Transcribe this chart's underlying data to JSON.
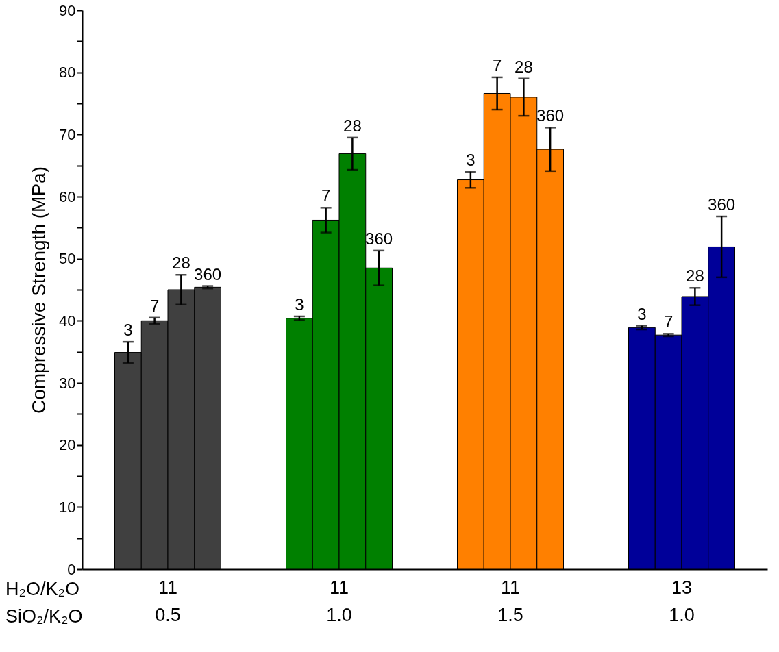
{
  "chart_data": {
    "type": "bar",
    "ylabel": "Compressive Strength (MPa)",
    "categories": [
      "11\n0.5",
      "11\n1.0",
      "11\n1.5",
      "13\n1.0"
    ],
    "annotations": [
      "H₂O/K₂O",
      "SiO₂/K₂O"
    ],
    "ylim": [
      0,
      90
    ],
    "yticks": [
      0,
      {
        "value": 5,
        "label": null
      },
      10,
      {
        "value": 15,
        "label": null
      },
      20,
      {
        "value": 25,
        "label": null
      },
      30,
      {
        "value": 35,
        "label": null
      },
      40,
      {
        "value": 45,
        "label": null
      },
      50,
      {
        "value": 55,
        "label": null
      },
      60,
      {
        "value": 65,
        "label": null
      },
      70,
      {
        "value": 75,
        "label": null
      },
      80,
      {
        "value": 85,
        "label": null
      },
      90
    ],
    "grid": false,
    "series": [
      {
        "name": "3",
        "colors": [
          "#404040",
          "#008000",
          "#ff8000",
          "#000099"
        ],
        "values": [
          34.9,
          40.4,
          62.7,
          38.9
        ],
        "errors": [
          1.7,
          0.3,
          1.3,
          0.3
        ]
      },
      {
        "name": "7",
        "colors": [
          "#404040",
          "#008000",
          "#ff8000",
          "#000099"
        ],
        "values": [
          40.0,
          56.2,
          76.6,
          37.7
        ],
        "errors": [
          0.5,
          2.0,
          2.6,
          0.2
        ]
      },
      {
        "name": "28",
        "colors": [
          "#404040",
          "#008000",
          "#ff8000",
          "#000099"
        ],
        "values": [
          45.0,
          66.9,
          76.0,
          43.9
        ],
        "errors": [
          2.4,
          2.6,
          3.0,
          1.4
        ]
      },
      {
        "name": "360",
        "colors": [
          "#404040",
          "#008000",
          "#ff8000",
          "#000099"
        ],
        "values": [
          45.4,
          48.5,
          67.6,
          51.9
        ],
        "errors": [
          0.2,
          2.8,
          3.5,
          4.9
        ]
      }
    ]
  }
}
